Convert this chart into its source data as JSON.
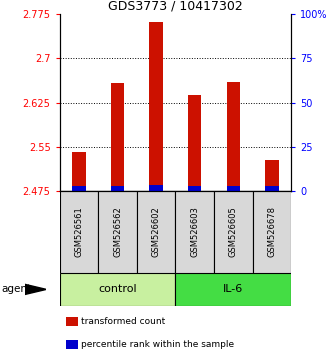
{
  "title": "GDS3773 / 10417302",
  "samples": [
    "GSM526561",
    "GSM526562",
    "GSM526602",
    "GSM526603",
    "GSM526605",
    "GSM526678"
  ],
  "red_values": [
    2.541,
    2.658,
    2.762,
    2.638,
    2.66,
    2.527
  ],
  "blue_values": [
    2.483,
    2.484,
    2.485,
    2.484,
    2.484,
    2.484
  ],
  "ymin": 2.475,
  "ymax": 2.775,
  "yticks": [
    2.475,
    2.55,
    2.625,
    2.7,
    2.775
  ],
  "ytick_labels": [
    "2.475",
    "2.55",
    "2.625",
    "2.7",
    "2.775"
  ],
  "right_yticks": [
    0,
    25,
    50,
    75,
    100
  ],
  "right_ytick_labels": [
    "0",
    "25",
    "50",
    "75",
    "100%"
  ],
  "groups": [
    {
      "label": "control",
      "indices": [
        0,
        1,
        2
      ],
      "color": "#c8f0a0"
    },
    {
      "label": "IL-6",
      "indices": [
        3,
        4,
        5
      ],
      "color": "#44dd44"
    }
  ],
  "agent_label": "agent",
  "bar_width": 0.35,
  "red_color": "#cc1100",
  "blue_color": "#0000cc",
  "left_tick_color": "red",
  "right_tick_color": "blue",
  "legend_items": [
    {
      "color": "#cc1100",
      "label": "transformed count"
    },
    {
      "color": "#0000cc",
      "label": "percentile rank within the sample"
    }
  ]
}
